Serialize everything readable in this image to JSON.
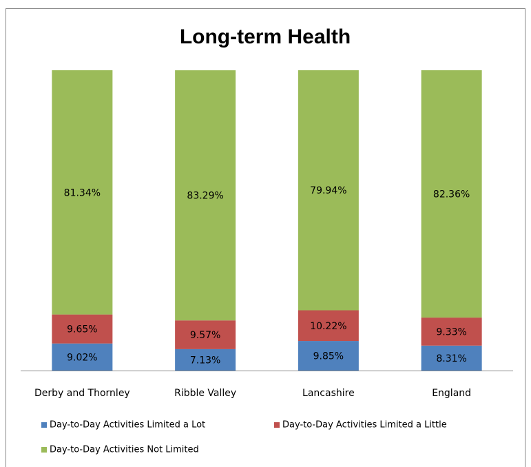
{
  "chart_data": {
    "type": "stacked-bar",
    "title": "Long-term Health",
    "categories": [
      "Derby and Thornley",
      "Ribble Valley",
      "Lancashire",
      "England"
    ],
    "series": [
      {
        "name": "Day-to-Day Activities Limited a Lot",
        "color": "#4f81bd",
        "values": [
          9.02,
          7.13,
          9.85,
          8.31
        ],
        "value_labels": [
          "9.02%",
          "7.13%",
          "9.85%",
          "8.31%"
        ]
      },
      {
        "name": "Day-to-Day Activities Limited a Little",
        "color": "#c0504d",
        "values": [
          9.65,
          9.57,
          10.22,
          9.33
        ],
        "value_labels": [
          "9.65%",
          "9.57%",
          "10.22%",
          "9.33%"
        ]
      },
      {
        "name": "Day-to-Day Activities Not Limited",
        "color": "#9bbb59",
        "values": [
          81.34,
          83.29,
          79.94,
          82.36
        ],
        "value_labels": [
          "81.34%",
          "83.29%",
          "79.94%",
          "82.36%"
        ]
      }
    ],
    "ylim": [
      0,
      100
    ]
  }
}
